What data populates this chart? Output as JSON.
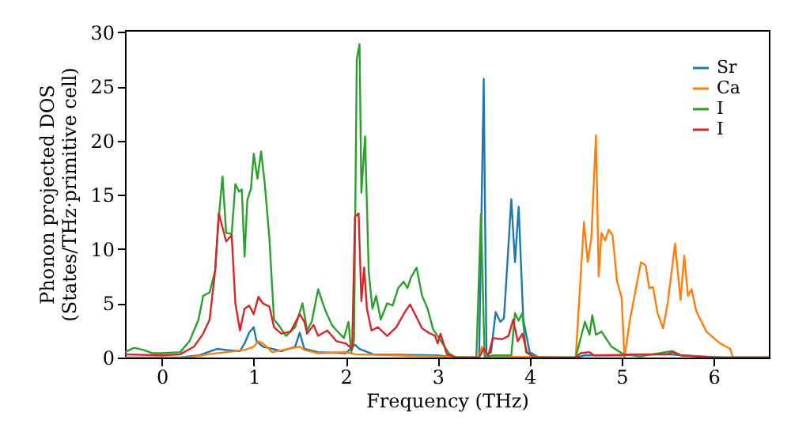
{
  "chart_data": {
    "type": "line",
    "xlabel": "Frequency (THz)",
    "ylabel": "Phonon projected DOS\n(States/THz·primitive cell)",
    "xlim": [
      -0.4,
      6.6
    ],
    "ylim": [
      0,
      30.2
    ],
    "xticks": [
      0,
      1,
      2,
      3,
      4,
      5,
      6
    ],
    "yticks": [
      0,
      5,
      10,
      15,
      20,
      25,
      30
    ],
    "grid": false,
    "legend": "top right",
    "series": [
      {
        "name": "Sr",
        "color": "#1f77b4",
        "x": [
          -0.4,
          0.2,
          0.4,
          0.6,
          0.7,
          0.85,
          0.9,
          0.95,
          1.0,
          1.03,
          1.1,
          1.3,
          1.45,
          1.5,
          1.55,
          1.7,
          2.0,
          2.1,
          2.15,
          2.3,
          3.0,
          3.2,
          3.45,
          3.5,
          3.53,
          3.58,
          3.63,
          3.68,
          3.72,
          3.8,
          3.84,
          3.88,
          3.93,
          4.0,
          4.1,
          4.5,
          4.6,
          5.5,
          6.0,
          6.6
        ],
        "values": [
          0,
          0,
          0.2,
          0.8,
          0.7,
          0.6,
          1.3,
          2.3,
          2.8,
          1.5,
          1.0,
          0.6,
          1.0,
          2.3,
          0.8,
          0.5,
          0.4,
          1.2,
          0.8,
          0.3,
          0.2,
          0,
          0,
          25.7,
          0.2,
          0.5,
          4.2,
          3.3,
          3.6,
          14.6,
          8.8,
          13.9,
          3.5,
          0.5,
          0,
          0,
          0.2,
          0.3,
          0,
          0
        ]
      },
      {
        "name": "Ca",
        "color": "#ff7f0e",
        "x": [
          -0.4,
          0.3,
          0.5,
          0.7,
          0.9,
          1.0,
          1.05,
          1.1,
          1.2,
          1.5,
          1.55,
          1.7,
          2.0,
          2.1,
          3.0,
          3.45,
          3.48,
          3.55,
          4.5,
          4.59,
          4.63,
          4.67,
          4.72,
          4.75,
          4.78,
          4.82,
          4.86,
          4.9,
          4.95,
          5.0,
          5.03,
          5.09,
          5.21,
          5.26,
          5.3,
          5.34,
          5.39,
          5.45,
          5.5,
          5.58,
          5.64,
          5.68,
          5.72,
          5.76,
          5.81,
          5.92,
          6.07,
          6.18,
          6.21,
          6.6
        ],
        "values": [
          0,
          0,
          0.3,
          0.5,
          0.7,
          1.0,
          1.5,
          1.3,
          0.5,
          1.0,
          0.7,
          0.4,
          0.5,
          0.3,
          0.1,
          0,
          1.0,
          0.1,
          0,
          12.5,
          8.8,
          11,
          20.5,
          7.5,
          11.5,
          10.8,
          11.8,
          11.3,
          7,
          5.5,
          0,
          3.5,
          8.8,
          8.5,
          6.4,
          6.5,
          4.1,
          2.7,
          5.0,
          10.5,
          5.3,
          9.4,
          5.7,
          6.3,
          4.3,
          2.4,
          1.3,
          0.8,
          0,
          0
        ]
      },
      {
        "name": "I",
        "color": "#2ca02c",
        "x": [
          -0.4,
          -0.3,
          -0.2,
          -0.1,
          0.0,
          0.2,
          0.3,
          0.4,
          0.45,
          0.52,
          0.58,
          0.62,
          0.66,
          0.7,
          0.76,
          0.8,
          0.84,
          0.87,
          0.9,
          0.93,
          0.97,
          1.0,
          1.04,
          1.08,
          1.12,
          1.17,
          1.22,
          1.27,
          1.35,
          1.45,
          1.53,
          1.58,
          1.63,
          1.7,
          1.78,
          1.85,
          1.9,
          1.98,
          2.03,
          2.06,
          2.09,
          2.12,
          2.15,
          2.17,
          2.21,
          2.25,
          2.29,
          2.33,
          2.38,
          2.45,
          2.51,
          2.57,
          2.63,
          2.67,
          2.71,
          2.77,
          2.83,
          2.89,
          2.95,
          3.03,
          3.12,
          3.2,
          3.42,
          3.47,
          3.51,
          3.6,
          3.8,
          3.84,
          3.88,
          3.92,
          3.96,
          4.05,
          4.5,
          4.6,
          4.65,
          4.68,
          4.72,
          4.78,
          4.89,
          5.02,
          5.2,
          5.55,
          5.65,
          6.1,
          6.6
        ],
        "values": [
          0.5,
          0.9,
          0.7,
          0.4,
          0.4,
          0.5,
          1.5,
          3.5,
          5.7,
          6.0,
          8,
          13,
          16.7,
          11.5,
          11.4,
          16,
          15.3,
          15.5,
          9.3,
          14.5,
          15.6,
          18.8,
          16.5,
          19,
          16,
          11,
          3.5,
          3.0,
          2.0,
          2.8,
          5,
          2.5,
          3.3,
          6.3,
          4.3,
          3.0,
          2.5,
          1.8,
          3.3,
          0.5,
          1.6,
          27.5,
          28.9,
          15.2,
          20.4,
          7.9,
          4.5,
          5.7,
          3.5,
          5.0,
          4.8,
          6.4,
          7.0,
          6.4,
          7.4,
          8.3,
          5.7,
          4.5,
          2.6,
          1.6,
          0.4,
          0,
          0,
          13.2,
          0,
          0.2,
          0.2,
          4.1,
          3.4,
          4.1,
          0.5,
          0,
          0,
          3.3,
          2.1,
          3.9,
          2.1,
          2.4,
          1.0,
          0.3,
          0.1,
          0.6,
          0.2,
          0,
          0
        ]
      },
      {
        "name": "I",
        "color": "#d62728",
        "x": [
          -0.4,
          0,
          0.2,
          0.35,
          0.45,
          0.52,
          0.58,
          0.62,
          0.66,
          0.7,
          0.76,
          0.8,
          0.85,
          0.9,
          0.95,
          1.0,
          1.05,
          1.1,
          1.17,
          1.22,
          1.3,
          1.4,
          1.5,
          1.55,
          1.58,
          1.65,
          1.7,
          1.8,
          1.9,
          2.0,
          2.07,
          2.1,
          2.14,
          2.17,
          2.2,
          2.23,
          2.28,
          2.35,
          2.45,
          2.55,
          2.65,
          2.7,
          2.77,
          2.83,
          2.9,
          2.97,
          3.0,
          3.03,
          3.1,
          3.2,
          3.45,
          3.5,
          3.55,
          3.6,
          3.7,
          3.77,
          3.82,
          3.87,
          3.92,
          3.97,
          4.05,
          4.5,
          4.55,
          4.65,
          4.7,
          5.0,
          5.1,
          5.5,
          5.55,
          5.65,
          6.0,
          6.6
        ],
        "values": [
          0.3,
          0.2,
          0.3,
          1.0,
          2.2,
          3.5,
          8,
          13.3,
          12,
          10.7,
          11.3,
          5,
          2.5,
          4.5,
          4.8,
          4.0,
          5.6,
          5.0,
          4.7,
          2.8,
          2.2,
          2.4,
          4.0,
          3.3,
          2.2,
          3.0,
          2.0,
          2.5,
          1.5,
          1.3,
          0.8,
          13,
          13.3,
          5.2,
          8.3,
          4.5,
          2.5,
          2.8,
          2.0,
          2.8,
          4.3,
          4.9,
          3.7,
          2.7,
          2.3,
          2.0,
          1.3,
          2.2,
          0.3,
          0,
          0,
          0.8,
          0.2,
          1.8,
          1.7,
          2.0,
          3.5,
          1.5,
          2.2,
          0.5,
          0,
          0,
          0.4,
          0.5,
          0.2,
          0.2,
          0.3,
          0.3,
          0.5,
          0.2,
          0,
          0
        ]
      }
    ]
  }
}
